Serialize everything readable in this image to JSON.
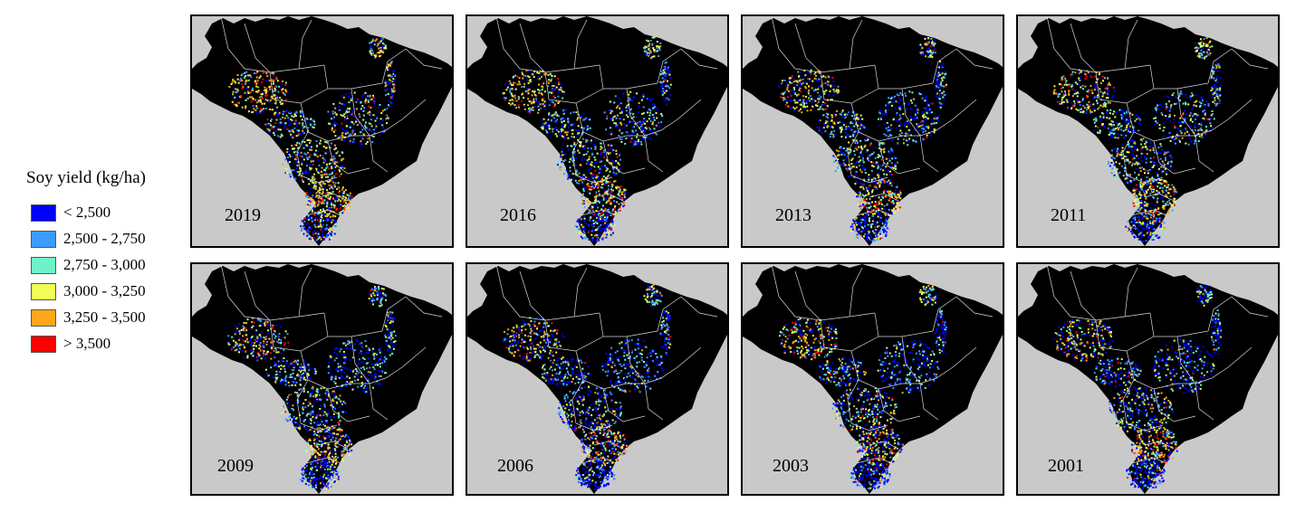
{
  "legend": {
    "title": "Soy yield (kg/ha)",
    "items": [
      {
        "label": "< 2,500",
        "color": "#0000ff"
      },
      {
        "label": "2,500 - 2,750",
        "color": "#3d9aff"
      },
      {
        "label": "2,750 - 3,000",
        "color": "#6ff2c8"
      },
      {
        "label": "3,000 - 3,250",
        "color": "#f0ff55"
      },
      {
        "label": "3,250 - 3,500",
        "color": "#ffa61a"
      },
      {
        "label": "> 3,500",
        "color": "#ff0000"
      }
    ]
  },
  "panels": [
    {
      "year": "2019",
      "dominant": [
        0.18,
        0.14,
        0.12,
        0.24,
        0.22,
        0.1
      ]
    },
    {
      "year": "2016",
      "dominant": [
        0.26,
        0.2,
        0.16,
        0.2,
        0.12,
        0.06
      ]
    },
    {
      "year": "2013",
      "dominant": [
        0.34,
        0.22,
        0.16,
        0.18,
        0.07,
        0.03
      ]
    },
    {
      "year": "2011",
      "dominant": [
        0.32,
        0.2,
        0.16,
        0.18,
        0.09,
        0.05
      ]
    },
    {
      "year": "2009",
      "dominant": [
        0.44,
        0.2,
        0.12,
        0.18,
        0.05,
        0.01
      ]
    },
    {
      "year": "2006",
      "dominant": [
        0.52,
        0.2,
        0.12,
        0.12,
        0.03,
        0.01
      ]
    },
    {
      "year": "2003",
      "dominant": [
        0.48,
        0.22,
        0.14,
        0.13,
        0.02,
        0.01
      ]
    },
    {
      "year": "2001",
      "dominant": [
        0.5,
        0.22,
        0.14,
        0.12,
        0.01,
        0.01
      ]
    }
  ],
  "colors": {
    "background": "#c9c9c9",
    "land": "#000000",
    "borders": "#d8d8d8"
  }
}
